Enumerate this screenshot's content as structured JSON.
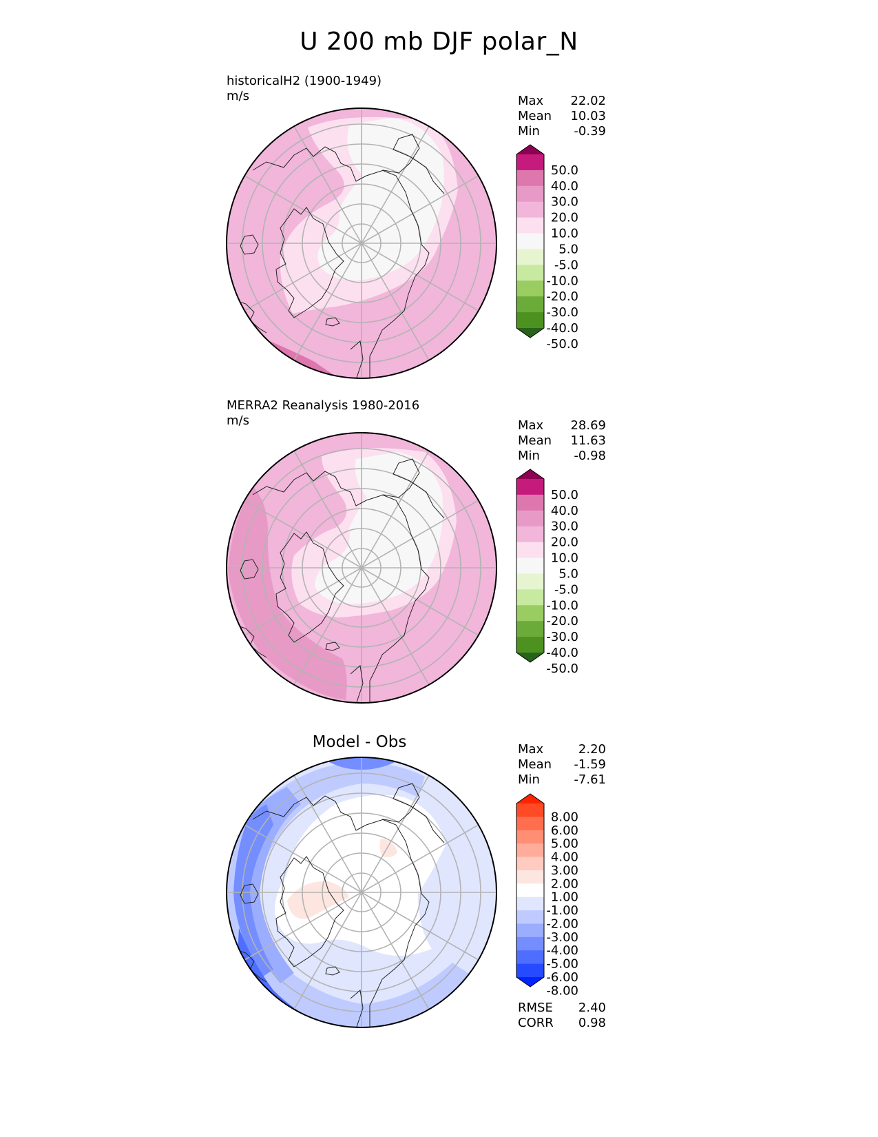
{
  "figure": {
    "title": "U 200 mb DJF polar_N"
  },
  "panels": [
    {
      "id": "model",
      "label": "historicalH2 (1900-1949)",
      "units": "m/s",
      "stats": [
        {
          "name": "Max",
          "value": "22.02"
        },
        {
          "name": "Mean",
          "value": "10.03"
        },
        {
          "name": "Min",
          "value": "-0.39"
        }
      ]
    },
    {
      "id": "obs",
      "label": "MERRA2 Reanalysis 1980-2016",
      "units": "m/s",
      "stats": [
        {
          "name": "Max",
          "value": "28.69"
        },
        {
          "name": "Mean",
          "value": "11.63"
        },
        {
          "name": "Min",
          "value": "-0.98"
        }
      ]
    },
    {
      "id": "diff",
      "title": "Model - Obs",
      "stats": [
        {
          "name": "Max",
          "value": "2.20"
        },
        {
          "name": "Mean",
          "value": "-1.59"
        },
        {
          "name": "Min",
          "value": "-7.61"
        }
      ],
      "metrics": [
        {
          "name": "RMSE",
          "value": "2.40"
        },
        {
          "name": "CORR",
          "value": "0.98"
        }
      ]
    }
  ],
  "colorbars": {
    "field": {
      "ticks": [
        "50.0",
        "40.0",
        "30.0",
        "20.0",
        "10.0",
        "5.0",
        "-5.0",
        "-10.0",
        "-20.0",
        "-30.0",
        "-40.0",
        "-50.0"
      ],
      "colors": [
        "#8e0152",
        "#c51b7d",
        "#de77ae",
        "#e89ac6",
        "#f1b6da",
        "#fde0ef",
        "#f7f7f7",
        "#e6f5d0",
        "#c7e9a0",
        "#9acd61",
        "#6aab3a",
        "#4d9221",
        "#276419"
      ]
    },
    "diff": {
      "ticks": [
        "8.00",
        "6.00",
        "5.00",
        "4.00",
        "3.00",
        "2.00",
        "1.00",
        "-1.00",
        "-2.00",
        "-3.00",
        "-4.00",
        "-5.00",
        "-6.00",
        "-8.00"
      ],
      "colors": [
        "#ff2400",
        "#ff4a25",
        "#ff6e4e",
        "#ff8e74",
        "#ffad9a",
        "#ffcbbf",
        "#fee6e0",
        "#ffffff",
        "#e0e6fe",
        "#bfcbff",
        "#9aadff",
        "#748eff",
        "#4e6eff",
        "#254aff",
        "#0024ff"
      ]
    }
  }
}
